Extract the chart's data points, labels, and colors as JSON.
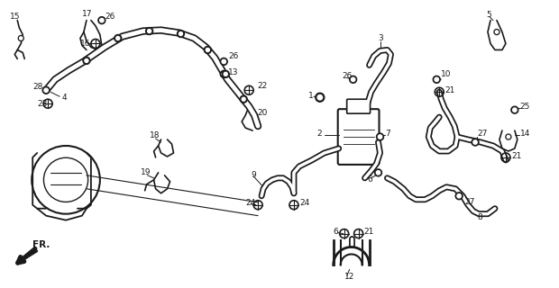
{
  "bg_color": "#ffffff",
  "line_color": "#1a1a1a",
  "fig_width": 6.2,
  "fig_height": 3.2,
  "dpi": 100
}
